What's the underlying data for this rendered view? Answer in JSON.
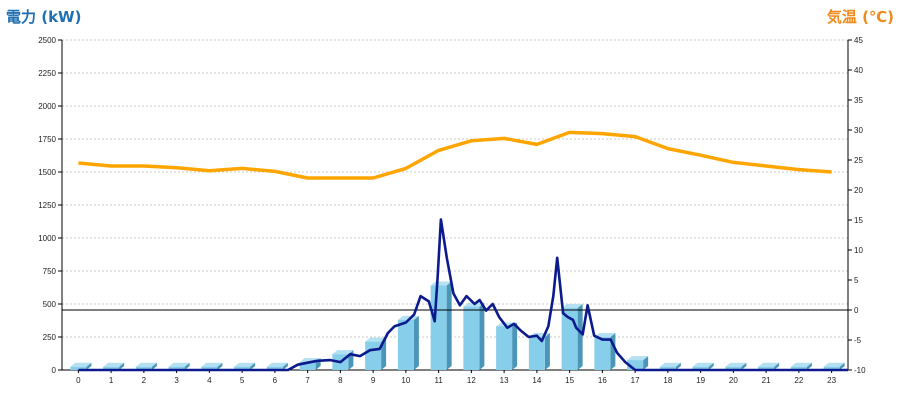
{
  "chart_data": {
    "type": "bar",
    "title_left": "電力 (kW)",
    "title_right": "気温 (℃)",
    "colors": {
      "title_left": "#1f6fb2",
      "title_right": "#f08a1c",
      "bar_front": "#87ceeb",
      "bar_side": "#4a95b8",
      "bar_top": "#b4e1f2",
      "power_line": "#0b1a8c",
      "temp_line": "#ffa500",
      "zero_line": "#000000",
      "grid": "#bbbbbb"
    },
    "y_left": {
      "min": 0,
      "max": 2500,
      "ticks": [
        "0",
        "250",
        "500",
        "750",
        "1000",
        "1250",
        "1500",
        "1750",
        "2000",
        "2250",
        "2500"
      ]
    },
    "y_right": {
      "min": -10,
      "max": 45,
      "ticks": [
        "-10",
        "-5",
        "0",
        "5",
        "10",
        "15",
        "20",
        "25",
        "30",
        "35",
        "40",
        "45"
      ]
    },
    "categories": [
      "0",
      "1",
      "2",
      "3",
      "4",
      "5",
      "6",
      "7",
      "8",
      "9",
      "10",
      "11",
      "12",
      "13",
      "14",
      "15",
      "16",
      "17",
      "18",
      "19",
      "20",
      "21",
      "22",
      "23"
    ],
    "bars_kW": [
      25,
      25,
      25,
      25,
      25,
      25,
      25,
      60,
      120,
      215,
      380,
      640,
      480,
      330,
      250,
      470,
      250,
      75,
      25,
      25,
      25,
      25,
      25,
      25
    ],
    "power_line_kW": [
      [
        0,
        0
      ],
      [
        1,
        0
      ],
      [
        2,
        0
      ],
      [
        3,
        0
      ],
      [
        4,
        0
      ],
      [
        5,
        0
      ],
      [
        6,
        0
      ],
      [
        6.4,
        0
      ],
      [
        6.7,
        40
      ],
      [
        7,
        55
      ],
      [
        7.3,
        70
      ],
      [
        7.7,
        75
      ],
      [
        8,
        60
      ],
      [
        8.3,
        120
      ],
      [
        8.6,
        105
      ],
      [
        8.9,
        150
      ],
      [
        9.2,
        160
      ],
      [
        9.45,
        280
      ],
      [
        9.65,
        330
      ],
      [
        10,
        360
      ],
      [
        10.25,
        420
      ],
      [
        10.45,
        560
      ],
      [
        10.7,
        520
      ],
      [
        10.88,
        370
      ],
      [
        10.97,
        700
      ],
      [
        11.07,
        1140
      ],
      [
        11.25,
        850
      ],
      [
        11.45,
        580
      ],
      [
        11.65,
        490
      ],
      [
        11.85,
        560
      ],
      [
        12.1,
        500
      ],
      [
        12.25,
        530
      ],
      [
        12.45,
        450
      ],
      [
        12.65,
        500
      ],
      [
        12.85,
        400
      ],
      [
        13.1,
        320
      ],
      [
        13.3,
        350
      ],
      [
        13.5,
        300
      ],
      [
        13.75,
        250
      ],
      [
        14,
        260
      ],
      [
        14.15,
        220
      ],
      [
        14.35,
        330
      ],
      [
        14.5,
        560
      ],
      [
        14.62,
        850
      ],
      [
        14.8,
        430
      ],
      [
        14.95,
        400
      ],
      [
        15.1,
        380
      ],
      [
        15.2,
        320
      ],
      [
        15.4,
        270
      ],
      [
        15.55,
        490
      ],
      [
        15.75,
        260
      ],
      [
        16,
        230
      ],
      [
        16.25,
        230
      ],
      [
        16.45,
        130
      ],
      [
        16.7,
        60
      ],
      [
        17,
        0
      ],
      [
        17.5,
        0
      ],
      [
        18,
        0
      ],
      [
        23.5,
        0
      ]
    ],
    "temperature_C": [
      [
        0,
        24.5
      ],
      [
        1,
        24
      ],
      [
        2,
        24
      ],
      [
        3,
        23.7
      ],
      [
        4,
        23.2
      ],
      [
        5,
        23.6
      ],
      [
        6,
        23.1
      ],
      [
        7,
        22
      ],
      [
        8,
        22
      ],
      [
        9,
        22
      ],
      [
        10,
        23.6
      ],
      [
        11,
        26.6
      ],
      [
        12,
        28.2
      ],
      [
        13,
        28.6
      ],
      [
        14,
        27.6
      ],
      [
        15,
        29.6
      ],
      [
        16,
        29.4
      ],
      [
        17,
        28.9
      ],
      [
        18,
        26.9
      ],
      [
        19,
        25.8
      ],
      [
        20,
        24.6
      ],
      [
        21,
        24
      ],
      [
        22,
        23.4
      ],
      [
        23,
        23
      ]
    ],
    "grid": true
  }
}
